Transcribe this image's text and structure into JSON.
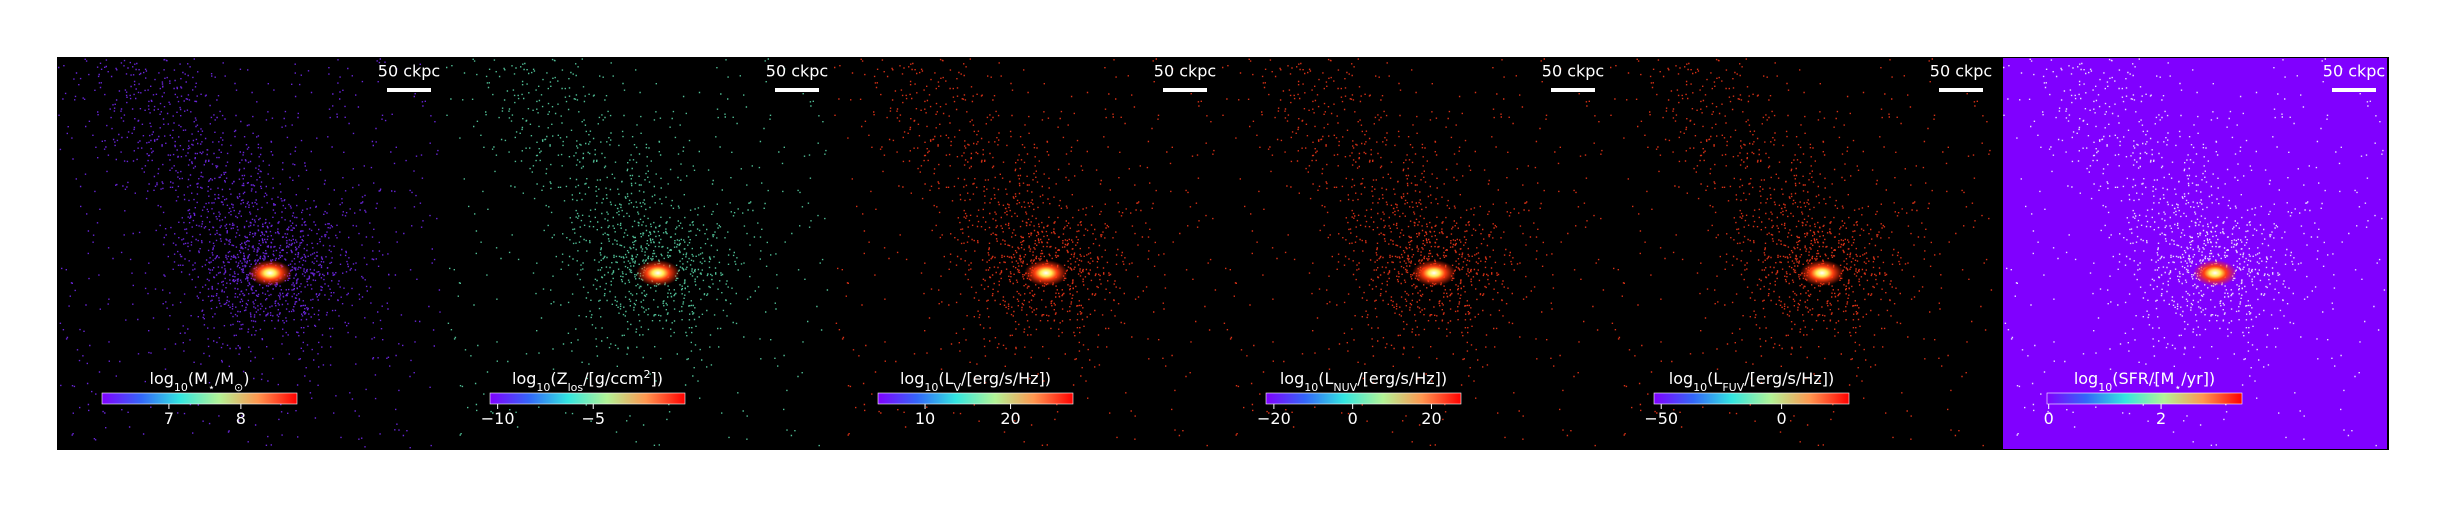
{
  "panels": [
    {
      "scale_label": "50 ckpc",
      "label": [
        {
          "t": "log"
        },
        {
          "t": "10",
          "sub": true
        },
        {
          "t": "(M"
        },
        {
          "t": "⋆",
          "sub": true
        },
        {
          "t": "/M"
        },
        {
          "t": "⊙",
          "sub": true
        },
        {
          "t": ")"
        }
      ],
      "clim": [
        6.07,
        8.78
      ],
      "cticks": [
        7,
        8
      ],
      "dot_color": "#7b2cff",
      "background": "#000000"
    },
    {
      "scale_label": "50 ckpc",
      "label": [
        {
          "t": "log"
        },
        {
          "t": "10",
          "sub": true
        },
        {
          "t": "(Z"
        },
        {
          "t": "los",
          "sub": true
        },
        {
          "t": "/[g/ccm"
        },
        {
          "t": "2",
          "sup": true
        },
        {
          "t": "])"
        }
      ],
      "clim": [
        -10.4,
        -0.2
      ],
      "cticks": [
        {
          "value": -10,
          "label": "−10"
        },
        {
          "value": -5,
          "label": "−5"
        }
      ],
      "dot_color": "#5fe0b0",
      "background": "#000000"
    },
    {
      "scale_label": "50 ckpc",
      "label": [
        {
          "t": "log"
        },
        {
          "t": "10",
          "sub": true
        },
        {
          "t": "(L"
        },
        {
          "t": "V",
          "sub": true
        },
        {
          "t": "/[erg/s/Hz])"
        }
      ],
      "clim": [
        4.5,
        27.3
      ],
      "cticks": [
        10,
        20
      ],
      "dot_color": "#ff3a1a",
      "background": "#000000"
    },
    {
      "scale_label": "50 ckpc",
      "label": [
        {
          "t": "log"
        },
        {
          "t": "10",
          "sub": true
        },
        {
          "t": "(L"
        },
        {
          "t": "NUV",
          "sub": true
        },
        {
          "t": "/[erg/s/Hz])"
        }
      ],
      "clim": [
        -22,
        27.5
      ],
      "cticks": [
        {
          "value": -20,
          "label": "−20"
        },
        0,
        20
      ],
      "dot_color": "#ff3a1a",
      "background": "#000000"
    },
    {
      "scale_label": "50 ckpc",
      "label": [
        {
          "t": "log"
        },
        {
          "t": "10",
          "sub": true
        },
        {
          "t": "(L"
        },
        {
          "t": "FUV",
          "sub": true
        },
        {
          "t": "/[erg/s/Hz])"
        }
      ],
      "clim": [
        -53,
        28
      ],
      "cticks": [
        {
          "value": -50,
          "label": "−50"
        },
        0
      ],
      "dot_color": "#ff3a1a",
      "background": "#000000"
    },
    {
      "scale_label": "50 ckpc",
      "label": [
        {
          "t": "log"
        },
        {
          "t": "10",
          "sub": true
        },
        {
          "t": "(SFR/[M"
        },
        {
          "t": "⋆",
          "sub": true
        },
        {
          "t": "/yr])"
        }
      ],
      "clim": [
        -0.03,
        3.44
      ],
      "cticks": [
        0,
        2
      ],
      "dot_color": "#ffffff",
      "background": "#8000ff"
    }
  ]
}
